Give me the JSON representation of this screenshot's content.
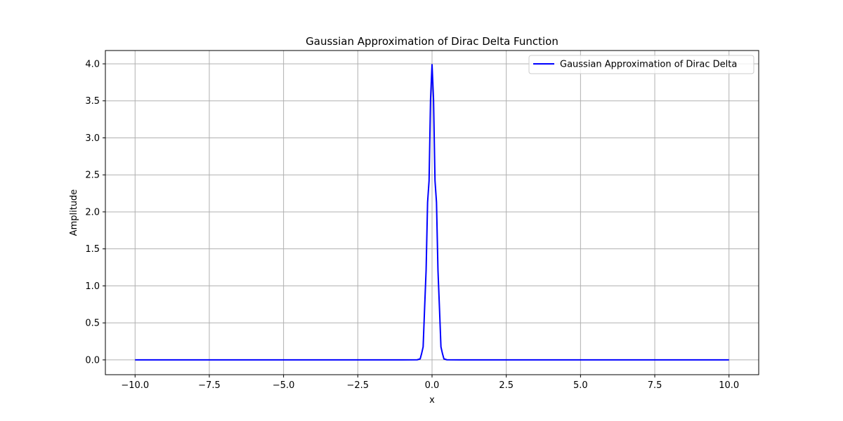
{
  "chart_data": {
    "type": "line",
    "title": "Gaussian Approximation of Dirac Delta Function",
    "xlabel": "x",
    "ylabel": "Amplitude",
    "xlim": [
      -11.0,
      11.0
    ],
    "ylim": [
      -0.2,
      4.18
    ],
    "x_ticks": [
      -10.0,
      -7.5,
      -5.0,
      -2.5,
      0.0,
      2.5,
      5.0,
      7.5,
      10.0
    ],
    "x_tick_labels": [
      "−10.0",
      "−7.5",
      "−5.0",
      "−2.5",
      "0.0",
      "2.5",
      "5.0",
      "7.5",
      "10.0"
    ],
    "y_ticks": [
      0.0,
      0.5,
      1.0,
      1.5,
      2.0,
      2.5,
      3.0,
      3.5,
      4.0
    ],
    "y_tick_labels": [
      "0.0",
      "0.5",
      "1.0",
      "1.5",
      "2.0",
      "2.5",
      "3.0",
      "3.5",
      "4.0"
    ],
    "grid": true,
    "legend_position": "top-right",
    "series": [
      {
        "name": "Gaussian Approximation of Dirac Delta",
        "color": "#0000ff",
        "x": [
          -10.0,
          -2.0,
          -1.0,
          -0.5,
          -0.4,
          -0.35,
          -0.3,
          -0.25,
          -0.2,
          -0.15,
          -0.1,
          -0.05,
          0.0,
          0.05,
          0.1,
          0.15,
          0.2,
          0.25,
          0.3,
          0.35,
          0.4,
          0.5,
          1.0,
          2.0,
          10.0
        ],
        "y": [
          0.0,
          0.0,
          0.0,
          0.0015,
          0.0134,
          0.0873,
          0.1753,
          0.7015,
          1.2099,
          2.1297,
          2.4197,
          3.5207,
          3.9894,
          3.5207,
          2.4197,
          2.1297,
          1.2099,
          0.7015,
          0.1753,
          0.0873,
          0.0134,
          0.0015,
          0.0,
          0.0,
          0.0
        ]
      }
    ]
  }
}
